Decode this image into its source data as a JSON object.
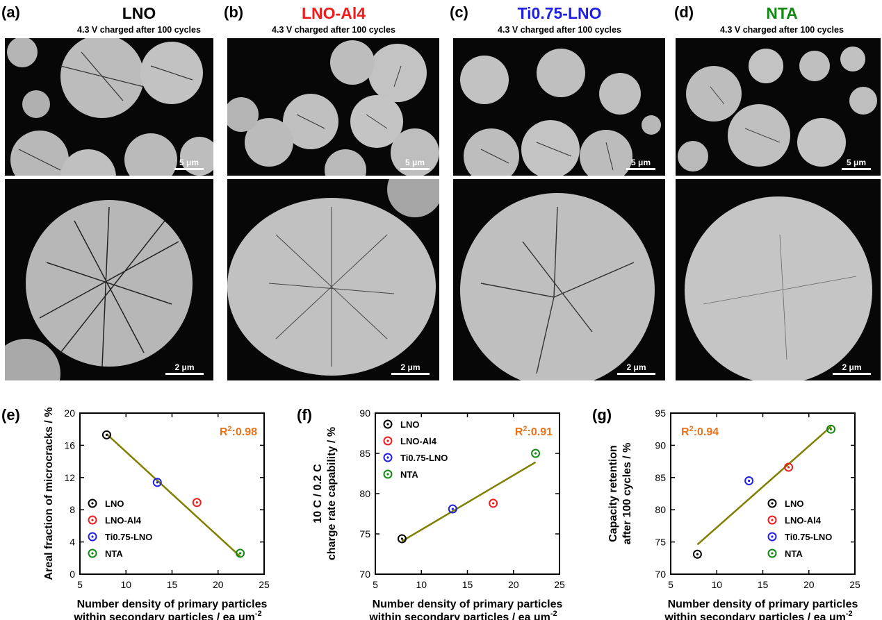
{
  "sem_panels": [
    {
      "label": "(a)",
      "title": "LNO",
      "title_color": "#000000",
      "subtitle": "4.3 V charged after 100 cycles",
      "scale_top": "5 μm",
      "scale_bottom": "2 μm"
    },
    {
      "label": "(b)",
      "title": "LNO-Al4",
      "title_color": "#ee1c1c",
      "subtitle": "4.3 V charged after 100 cycles",
      "scale_top": "5 μm",
      "scale_bottom": "2 μm"
    },
    {
      "label": "(c)",
      "title": "Ti0.75-LNO",
      "title_color": "#1e1ee6",
      "subtitle": "4.3 V charged after 100 cycles",
      "scale_top": "5 μm",
      "scale_bottom": "2 μm"
    },
    {
      "label": "(d)",
      "title": "NTA",
      "title_color": "#118a11",
      "subtitle": "4.3 V charged after 100 cycles",
      "scale_top": "5 μm",
      "scale_bottom": "2 μm"
    }
  ],
  "colors": {
    "LNO": "#000000",
    "LNO-Al4": "#ee1c1c",
    "Ti0.75-LNO": "#1e1ee6",
    "NTA": "#118a11",
    "fit_line": "#7f7f00",
    "r2": "#e8731a"
  },
  "chart_data": [
    {
      "label": "(e)",
      "type": "scatter",
      "xlabel_line1": "Number density of primary particles",
      "xlabel_line2": "within secondary particles / ea μm",
      "xlabel_sup": "-2",
      "ylabel": [
        "Areal fraction of microcracks / %"
      ],
      "xlim": [
        5,
        25
      ],
      "ylim": [
        0,
        20
      ],
      "xticks": [
        5,
        10,
        15,
        20,
        25
      ],
      "yticks": [
        0,
        4,
        8,
        12,
        16,
        20
      ],
      "r2_label": "R",
      "r2_sup": "2",
      "r2_value": ":0.98",
      "r2_position": "top-right",
      "legend": [
        "LNO",
        "LNO-Al4",
        "Ti0.75-LNO",
        "NTA"
      ],
      "legend_position": "bottom-left",
      "series": [
        {
          "name": "LNO",
          "x": 7.9,
          "y": 17.3
        },
        {
          "name": "LNO-Al4",
          "x": 17.7,
          "y": 8.9
        },
        {
          "name": "Ti0.75-LNO",
          "x": 13.4,
          "y": 11.4
        },
        {
          "name": "NTA",
          "x": 22.4,
          "y": 2.6
        }
      ],
      "fit": {
        "x": [
          7.9,
          22.4
        ],
        "y": [
          17.4,
          2.2
        ]
      }
    },
    {
      "label": "(f)",
      "type": "scatter",
      "xlabel_line1": "Number density of primary particles",
      "xlabel_line2": "within secondary particles / ea μm",
      "xlabel_sup": "-2",
      "ylabel": [
        "10 C / 0.2 C",
        "charge rate capability / %"
      ],
      "xlim": [
        5,
        25
      ],
      "ylim": [
        70,
        90
      ],
      "xticks": [
        5,
        10,
        15,
        20,
        25
      ],
      "yticks": [
        70,
        75,
        80,
        85,
        90
      ],
      "r2_label": "R",
      "r2_sup": "2",
      "r2_value": ":0.91",
      "r2_position": "top-right",
      "legend": [
        "LNO",
        "LNO-Al4",
        "Ti0.75-LNO",
        "NTA"
      ],
      "legend_position": "top-left",
      "series": [
        {
          "name": "LNO",
          "x": 7.9,
          "y": 74.4
        },
        {
          "name": "LNO-Al4",
          "x": 17.8,
          "y": 78.8
        },
        {
          "name": "Ti0.75-LNO",
          "x": 13.4,
          "y": 78.1
        },
        {
          "name": "NTA",
          "x": 22.4,
          "y": 85.0
        }
      ],
      "fit": {
        "x": [
          7.9,
          22.4
        ],
        "y": [
          74.1,
          83.9
        ]
      }
    },
    {
      "label": "(g)",
      "type": "scatter",
      "xlabel_line1": "Number density of primary particles",
      "xlabel_line2": "within secondary particles / ea μm",
      "xlabel_sup": "-2",
      "ylabel": [
        "Capacity retention",
        "after 100 cycles / %"
      ],
      "xlim": [
        5,
        25
      ],
      "ylim": [
        70,
        95
      ],
      "xticks": [
        5,
        10,
        15,
        20,
        25
      ],
      "yticks": [
        70,
        75,
        80,
        85,
        90,
        95
      ],
      "r2_label": "R",
      "r2_sup": "2",
      "r2_value": ":0.94",
      "r2_position": "top-left",
      "legend": [
        "LNO",
        "LNO-Al4",
        "Ti0.75-LNO",
        "NTA"
      ],
      "legend_position": "bottom-right",
      "series": [
        {
          "name": "LNO",
          "x": 7.9,
          "y": 73.1
        },
        {
          "name": "LNO-Al4",
          "x": 17.8,
          "y": 86.6
        },
        {
          "name": "Ti0.75-LNO",
          "x": 13.5,
          "y": 84.5
        },
        {
          "name": "NTA",
          "x": 22.4,
          "y": 92.5
        }
      ],
      "fit": {
        "x": [
          7.9,
          22.4
        ],
        "y": [
          74.6,
          92.9
        ]
      }
    }
  ]
}
